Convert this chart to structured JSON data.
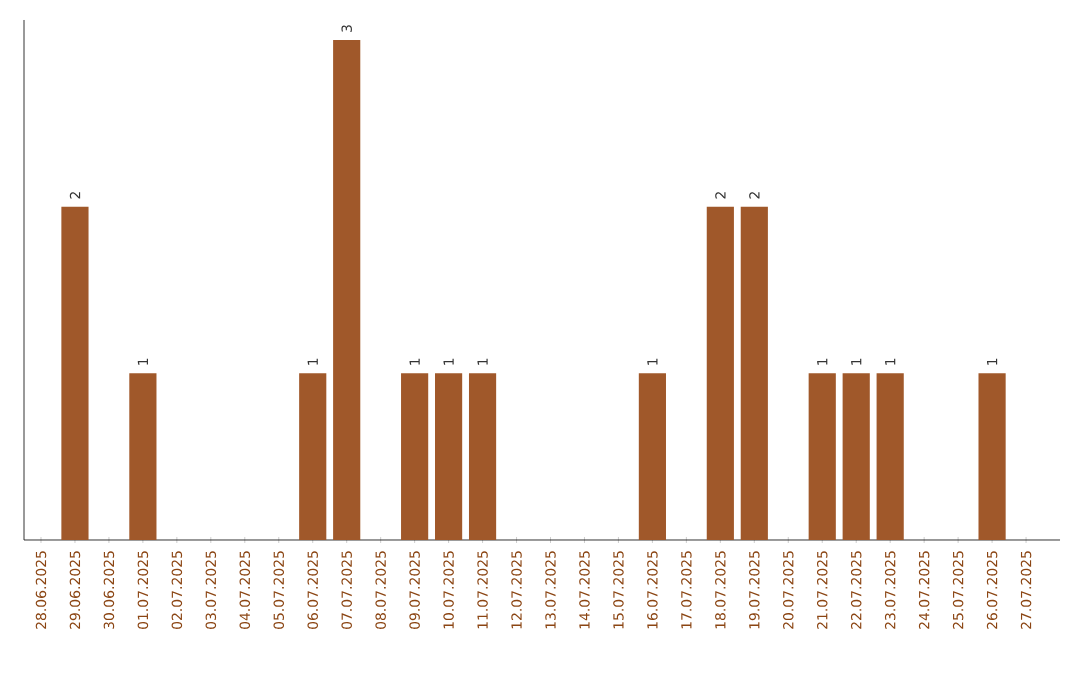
{
  "chart_data": {
    "type": "bar",
    "categories": [
      "28.06.2025",
      "29.06.2025",
      "30.06.2025",
      "01.07.2025",
      "02.07.2025",
      "03.07.2025",
      "04.07.2025",
      "05.07.2025",
      "06.07.2025",
      "07.07.2025",
      "08.07.2025",
      "09.07.2025",
      "10.07.2025",
      "11.07.2025",
      "12.07.2025",
      "13.07.2025",
      "14.07.2025",
      "15.07.2025",
      "16.07.2025",
      "17.07.2025",
      "18.07.2025",
      "19.07.2025",
      "20.07.2025",
      "21.07.2025",
      "22.07.2025",
      "23.07.2025",
      "24.07.2025",
      "25.07.2025",
      "26.07.2025",
      "27.07.2025"
    ],
    "values": [
      0,
      2,
      0,
      1,
      0,
      0,
      0,
      0,
      1,
      3,
      0,
      1,
      1,
      1,
      0,
      0,
      0,
      0,
      1,
      0,
      2,
      2,
      0,
      1,
      1,
      1,
      0,
      0,
      1,
      0
    ],
    "value_labels": [
      null,
      "2",
      null,
      "1",
      null,
      null,
      null,
      null,
      "1",
      "3",
      null,
      "1",
      "1",
      "1",
      null,
      null,
      null,
      null,
      "1",
      null,
      "2",
      "2",
      null,
      "1",
      "1",
      "1",
      null,
      null,
      "1",
      null
    ],
    "color": "#a0582a",
    "tick_labels": "x",
    "grid": false
  }
}
